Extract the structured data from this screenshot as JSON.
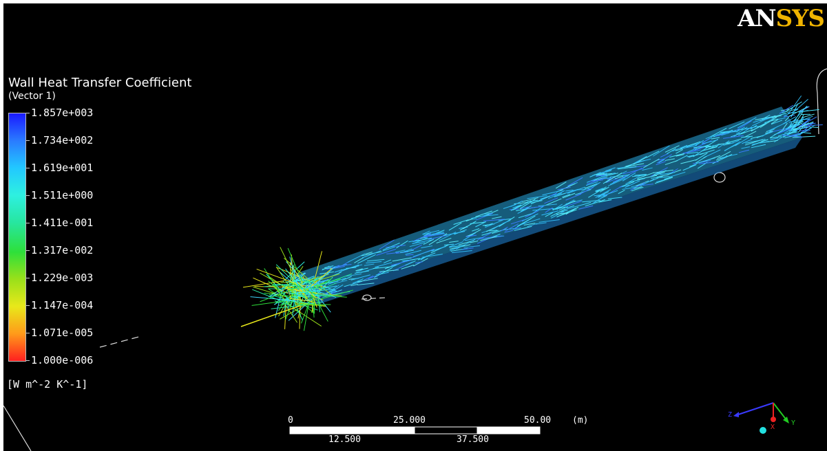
{
  "logo": {
    "part1": "AN",
    "part2": "SYS"
  },
  "legend": {
    "title": "Wall Heat Transfer Coefficient",
    "subtitle": "(Vector 1)",
    "labels": [
      "1.857e+003",
      "1.734e+002",
      "1.619e+001",
      "1.511e+000",
      "1.411e-001",
      "1.317e-002",
      "1.229e-003",
      "1.147e-004",
      "1.071e-005",
      "1.000e-006"
    ],
    "units": "[W m^-2 K^-1]",
    "colors": [
      "#1a1aff",
      "#2a7bff",
      "#22c8ff",
      "#2ef0e0",
      "#27e6a0",
      "#2ee03a",
      "#9ae01a",
      "#e8e81a",
      "#ff9a1a",
      "#ff2020"
    ]
  },
  "scale": {
    "top_labels": [
      "0",
      "25.000",
      "50.00",
      "(m)"
    ],
    "bottom_labels": [
      "12.500",
      "37.500"
    ]
  },
  "triad": {
    "z": "Z",
    "x": "X",
    "y": "Y"
  },
  "colors": {
    "background": "#000000",
    "logo_gold": "#f0b400",
    "vector_cyan": "#3fd8ff",
    "vector_blue": "#3a7bff"
  }
}
